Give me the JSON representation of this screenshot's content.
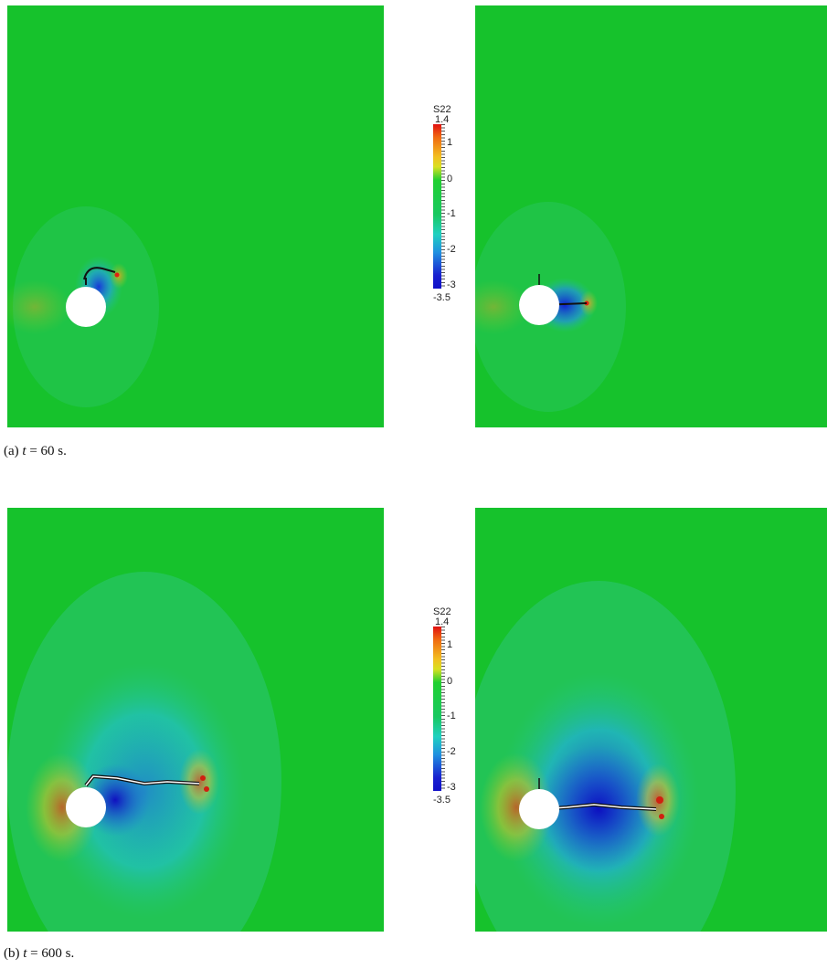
{
  "colorbar": {
    "title": "S22",
    "ticks": [
      "1.4",
      "1",
      "0",
      "-1",
      "-2",
      "-3",
      "-3.5"
    ],
    "colors": [
      "#e01010",
      "#f2c020",
      "#20d030",
      "#20d0c0",
      "#1820d0"
    ]
  },
  "captions": {
    "a": {
      "prefix": "(a) ",
      "var": "t",
      "rest": " = 60 s."
    },
    "b": {
      "prefix": "(b) ",
      "var": "t",
      "rest": " = 600 s."
    }
  }
}
